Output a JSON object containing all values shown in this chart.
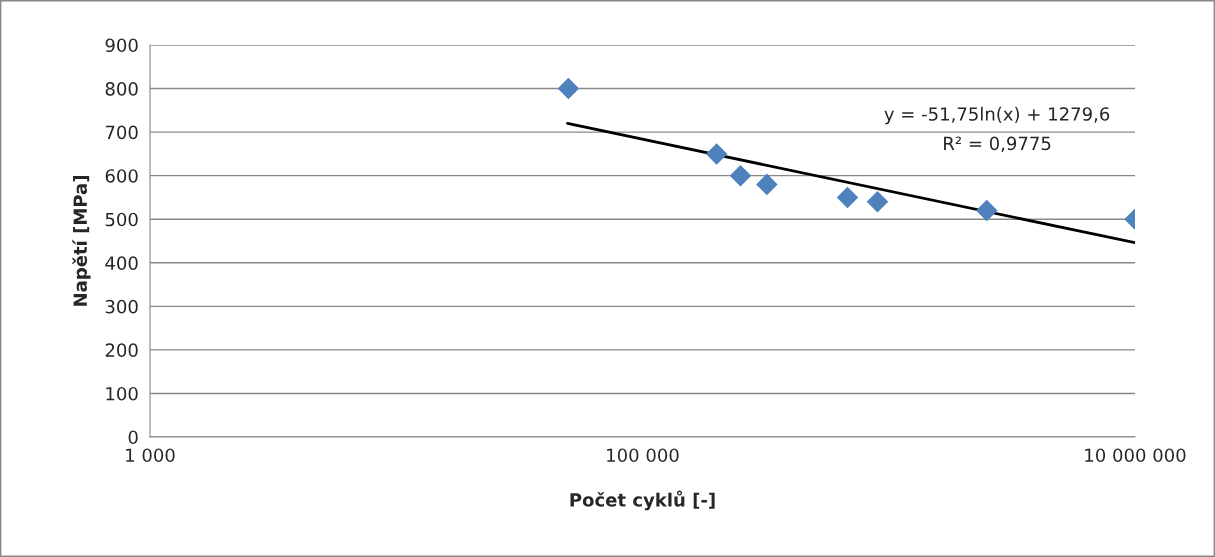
{
  "chart_data": {
    "type": "scatter",
    "xlabel": "Počet cyklů [-]",
    "ylabel": "Napětí [MPa]",
    "log": "x",
    "xlim": [
      1000,
      10000000
    ],
    "xticks": [
      {
        "value": 1000,
        "label": "1 000"
      },
      {
        "value": 100000,
        "label": "100 000"
      },
      {
        "value": 10000000,
        "label": "10 000 000"
      }
    ],
    "ylim": [
      0,
      900
    ],
    "yticks": [
      0,
      100,
      200,
      300,
      400,
      500,
      600,
      700,
      800,
      900
    ],
    "grid": "y",
    "marker": "diamond",
    "legend": false,
    "annotations": [
      "y = -51,75ln(x) + 1279,6",
      "R² = 0,9775"
    ],
    "series": [
      {
        "color": "#4f81bd",
        "x": [
          50000,
          200000,
          250000,
          320000,
          680000,
          900000,
          2500000,
          10000000
        ],
        "values": [
          800,
          650,
          600,
          580,
          550,
          540,
          520,
          500
        ]
      },
      {
        "type": "line",
        "color": "#000000",
        "marker": "none",
        "line_style": "solid",
        "x": [
          49600,
          10000000
        ],
        "values": [
          720,
          446
        ]
      }
    ]
  }
}
